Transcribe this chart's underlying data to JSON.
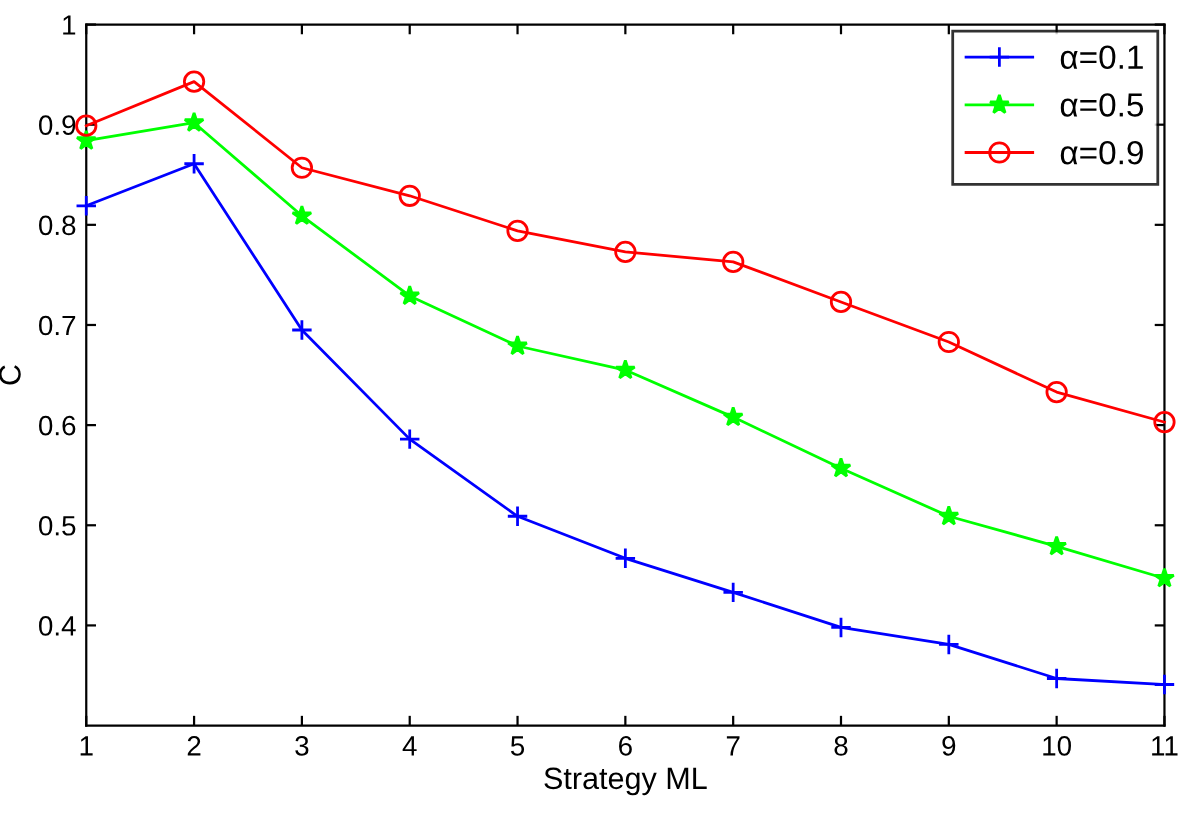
{
  "chart_data": {
    "type": "line",
    "xlabel": "Strategy ML",
    "ylabel": "C",
    "x": [
      1,
      2,
      3,
      4,
      5,
      6,
      7,
      8,
      9,
      10,
      11
    ],
    "series": [
      {
        "name": "α=0.1",
        "color": "#0000ff",
        "marker": "cross",
        "values": [
          0.819,
          0.861,
          0.695,
          0.586,
          0.509,
          0.467,
          0.433,
          0.398,
          0.381,
          0.347,
          0.341
        ]
      },
      {
        "name": "α=0.5",
        "color": "#00ff00",
        "marker": "star",
        "values": [
          0.884,
          0.902,
          0.809,
          0.729,
          0.679,
          0.655,
          0.608,
          0.557,
          0.509,
          0.479,
          0.447
        ]
      },
      {
        "name": "α=0.9",
        "color": "#ff0000",
        "marker": "circle",
        "values": [
          0.899,
          0.943,
          0.857,
          0.829,
          0.794,
          0.773,
          0.763,
          0.723,
          0.683,
          0.633,
          0.603
        ]
      }
    ],
    "xlim": [
      1,
      11
    ],
    "xticks": [
      1,
      2,
      3,
      4,
      5,
      6,
      7,
      8,
      9,
      10,
      11
    ],
    "ylim": [
      0.3,
      1
    ],
    "yticks": [
      0.4,
      0.5,
      0.6,
      0.7,
      0.8,
      0.9,
      1
    ],
    "grid": false,
    "legend": "top right",
    "line_style": "solid"
  }
}
